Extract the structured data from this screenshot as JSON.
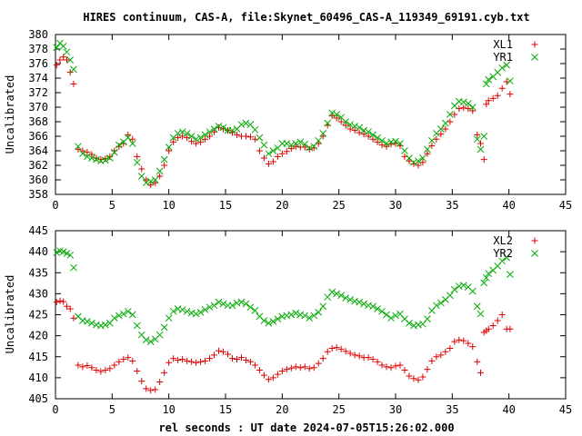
{
  "title": "HIRES continuum, CAS-A, file:Skynet_60496_CAS-A_119349_69191.cyb.txt",
  "xlabel": "rel seconds : UT date 2024-07-05T15:26:02.000",
  "chart_data": [
    {
      "type": "scatter",
      "ylabel": "Uncalibrated",
      "xlim": [
        0,
        45
      ],
      "ylim": [
        358,
        380
      ],
      "xticks": [
        0,
        5,
        10,
        15,
        20,
        25,
        30,
        35,
        40,
        45
      ],
      "yticks": [
        358,
        360,
        362,
        364,
        366,
        368,
        370,
        372,
        374,
        376,
        378,
        380
      ],
      "legend": "top-right",
      "series": [
        {
          "name": "XL1",
          "color": "#dd0000",
          "marker": "plus",
          "x": [
            0.1,
            0.4,
            0.7,
            1.0,
            1.3,
            1.6,
            2.0,
            2.4,
            2.8,
            3.2,
            3.6,
            4.0,
            4.4,
            4.8,
            5.2,
            5.6,
            6.0,
            6.4,
            6.8,
            7.2,
            7.6,
            8.0,
            8.4,
            8.8,
            9.2,
            9.6,
            10.0,
            10.4,
            10.8,
            11.2,
            11.6,
            12.0,
            12.4,
            12.8,
            13.2,
            13.6,
            14.0,
            14.4,
            14.8,
            15.2,
            15.6,
            16.0,
            16.4,
            16.8,
            17.2,
            17.6,
            18.0,
            18.4,
            18.8,
            19.2,
            19.6,
            20.0,
            20.4,
            20.8,
            21.2,
            21.6,
            22.0,
            22.4,
            22.8,
            23.2,
            23.6,
            24.0,
            24.4,
            24.8,
            25.2,
            25.6,
            26.0,
            26.4,
            26.8,
            27.2,
            27.6,
            28.0,
            28.4,
            28.8,
            29.2,
            29.6,
            30.0,
            30.4,
            30.8,
            31.2,
            31.6,
            32.0,
            32.4,
            32.8,
            33.2,
            33.6,
            34.0,
            34.4,
            34.8,
            35.2,
            35.6,
            36.0,
            36.4,
            36.8,
            37.2,
            37.5,
            37.8,
            38.0,
            38.2,
            38.6,
            39.0,
            39.4,
            39.8,
            40.1
          ],
          "y": [
            375.8,
            376.5,
            376.9,
            376.5,
            374.8,
            373.2,
            364.2,
            364.0,
            363.8,
            363.5,
            363.0,
            362.8,
            362.9,
            363.2,
            364.0,
            364.6,
            365.0,
            366.2,
            365.6,
            363.2,
            361.5,
            360.0,
            359.3,
            359.6,
            360.5,
            362.0,
            364.0,
            365.2,
            365.8,
            366.0,
            365.8,
            365.3,
            365.0,
            365.2,
            365.6,
            366.0,
            366.6,
            367.2,
            367.0,
            366.8,
            366.5,
            366.2,
            366.0,
            366.0,
            365.9,
            365.6,
            364.0,
            363.0,
            362.2,
            362.5,
            363.2,
            363.6,
            363.9,
            364.3,
            364.6,
            364.5,
            364.5,
            364.2,
            364.4,
            365.0,
            366.0,
            367.5,
            368.8,
            368.5,
            368.0,
            367.5,
            367.0,
            366.8,
            366.5,
            366.3,
            366.0,
            365.6,
            365.2,
            364.8,
            364.6,
            364.9,
            365.0,
            364.7,
            363.2,
            362.6,
            362.2,
            362.0,
            362.4,
            363.6,
            364.7,
            365.6,
            366.3,
            367.0,
            368.0,
            369.0,
            369.8,
            369.9,
            369.8,
            369.5,
            366.2,
            365.0,
            362.8,
            370.4,
            370.9,
            371.2,
            371.6,
            372.6,
            373.5,
            371.8
          ]
        },
        {
          "name": "YR1",
          "color": "#00aa00",
          "marker": "cross",
          "x": [
            0.1,
            0.4,
            0.7,
            1.0,
            1.3,
            1.6,
            2.0,
            2.4,
            2.8,
            3.2,
            3.6,
            4.0,
            4.4,
            4.8,
            5.2,
            5.6,
            6.0,
            6.4,
            6.8,
            7.2,
            7.6,
            8.0,
            8.4,
            8.8,
            9.2,
            9.6,
            10.0,
            10.4,
            10.8,
            11.2,
            11.6,
            12.0,
            12.4,
            12.8,
            13.2,
            13.6,
            14.0,
            14.4,
            14.8,
            15.2,
            15.6,
            16.0,
            16.4,
            16.8,
            17.2,
            17.6,
            18.0,
            18.4,
            18.8,
            19.2,
            19.6,
            20.0,
            20.4,
            20.8,
            21.2,
            21.6,
            22.0,
            22.4,
            22.8,
            23.2,
            23.6,
            24.0,
            24.4,
            24.8,
            25.2,
            25.6,
            26.0,
            26.4,
            26.8,
            27.2,
            27.6,
            28.0,
            28.4,
            28.8,
            29.2,
            29.6,
            30.0,
            30.4,
            30.8,
            31.2,
            31.6,
            32.0,
            32.4,
            32.8,
            33.2,
            33.6,
            34.0,
            34.4,
            34.8,
            35.2,
            35.6,
            36.0,
            36.4,
            36.8,
            37.2,
            37.5,
            37.8,
            38.0,
            38.2,
            38.6,
            39.0,
            39.4,
            39.8,
            40.1
          ],
          "y": [
            378.2,
            378.8,
            378.4,
            377.6,
            376.5,
            375.2,
            364.6,
            363.6,
            363.2,
            363.0,
            362.8,
            362.6,
            362.7,
            363.0,
            363.8,
            364.8,
            365.2,
            365.8,
            365.0,
            362.4,
            360.5,
            359.6,
            359.8,
            360.0,
            361.2,
            362.8,
            364.5,
            365.8,
            366.4,
            366.6,
            366.4,
            366.0,
            365.6,
            365.8,
            366.2,
            366.6,
            367.0,
            367.4,
            367.2,
            366.8,
            366.8,
            367.0,
            367.6,
            367.8,
            367.6,
            366.9,
            365.8,
            364.8,
            363.6,
            364.0,
            364.4,
            365.0,
            365.0,
            364.8,
            365.0,
            365.2,
            364.9,
            364.4,
            364.6,
            365.4,
            366.4,
            367.8,
            369.2,
            369.0,
            368.6,
            368.0,
            367.6,
            367.4,
            367.2,
            366.8,
            366.6,
            366.2,
            365.8,
            365.4,
            365.0,
            365.2,
            365.3,
            365.0,
            364.0,
            363.0,
            362.4,
            362.6,
            363.0,
            364.2,
            365.4,
            366.4,
            367.0,
            367.8,
            369.0,
            370.2,
            370.8,
            370.7,
            370.5,
            370.0,
            365.6,
            364.2,
            366.0,
            373.2,
            373.8,
            374.2,
            374.8,
            375.4,
            375.8,
            373.6
          ]
        }
      ]
    },
    {
      "type": "scatter",
      "ylabel": "Uncalibrated",
      "xlim": [
        0,
        45
      ],
      "ylim": [
        405,
        445
      ],
      "xticks": [
        0,
        5,
        10,
        15,
        20,
        25,
        30,
        35,
        40,
        45
      ],
      "yticks": [
        405,
        410,
        415,
        420,
        425,
        430,
        435,
        440,
        445
      ],
      "legend": "top-right",
      "series": [
        {
          "name": "XL2",
          "color": "#dd0000",
          "marker": "plus",
          "x": [
            0.1,
            0.4,
            0.7,
            1.0,
            1.3,
            1.6,
            2.0,
            2.4,
            2.8,
            3.2,
            3.6,
            4.0,
            4.4,
            4.8,
            5.2,
            5.6,
            6.0,
            6.4,
            6.8,
            7.2,
            7.6,
            8.0,
            8.4,
            8.8,
            9.2,
            9.6,
            10.0,
            10.4,
            10.8,
            11.2,
            11.6,
            12.0,
            12.4,
            12.8,
            13.2,
            13.6,
            14.0,
            14.4,
            14.8,
            15.2,
            15.6,
            16.0,
            16.4,
            16.8,
            17.2,
            17.6,
            18.0,
            18.4,
            18.8,
            19.2,
            19.6,
            20.0,
            20.4,
            20.8,
            21.2,
            21.6,
            22.0,
            22.4,
            22.8,
            23.2,
            23.6,
            24.0,
            24.4,
            24.8,
            25.2,
            25.6,
            26.0,
            26.4,
            26.8,
            27.2,
            27.6,
            28.0,
            28.4,
            28.8,
            29.2,
            29.6,
            30.0,
            30.4,
            30.8,
            31.2,
            31.6,
            32.0,
            32.4,
            32.8,
            33.2,
            33.6,
            34.0,
            34.4,
            34.8,
            35.2,
            35.6,
            36.0,
            36.4,
            36.8,
            37.2,
            37.5,
            37.8,
            38.0,
            38.2,
            38.6,
            39.0,
            39.4,
            39.8,
            40.1
          ],
          "y": [
            428.0,
            428.3,
            428.1,
            427.0,
            426.4,
            424.2,
            413.0,
            412.6,
            412.9,
            412.4,
            411.8,
            411.5,
            411.8,
            412.2,
            413.0,
            413.8,
            414.4,
            414.8,
            414.0,
            411.6,
            409.2,
            407.4,
            407.0,
            407.2,
            409.0,
            411.2,
            413.6,
            414.6,
            414.2,
            414.4,
            414.0,
            413.8,
            413.6,
            413.8,
            414.0,
            414.6,
            415.4,
            416.4,
            416.2,
            415.6,
            414.6,
            414.4,
            414.8,
            414.2,
            413.8,
            413.0,
            411.8,
            410.6,
            409.6,
            410.0,
            410.8,
            411.6,
            412.0,
            412.3,
            412.6,
            412.4,
            412.6,
            412.2,
            412.4,
            413.4,
            414.6,
            416.2,
            417.0,
            417.2,
            416.8,
            416.3,
            415.8,
            415.4,
            415.2,
            414.8,
            414.8,
            414.4,
            413.8,
            413.0,
            412.6,
            412.4,
            412.8,
            413.0,
            411.8,
            410.4,
            409.8,
            409.5,
            410.2,
            412.0,
            414.0,
            415.0,
            415.4,
            416.2,
            417.0,
            418.6,
            419.0,
            418.8,
            418.2,
            417.4,
            413.8,
            411.2,
            420.8,
            421.2,
            421.6,
            422.4,
            423.6,
            425.0,
            421.6,
            421.6
          ]
        },
        {
          "name": "YR2",
          "color": "#00aa00",
          "marker": "cross",
          "x": [
            0.1,
            0.4,
            0.7,
            1.0,
            1.3,
            1.6,
            2.0,
            2.4,
            2.8,
            3.2,
            3.6,
            4.0,
            4.4,
            4.8,
            5.2,
            5.6,
            6.0,
            6.4,
            6.8,
            7.2,
            7.6,
            8.0,
            8.4,
            8.8,
            9.2,
            9.6,
            10.0,
            10.4,
            10.8,
            11.2,
            11.6,
            12.0,
            12.4,
            12.8,
            13.2,
            13.6,
            14.0,
            14.4,
            14.8,
            15.2,
            15.6,
            16.0,
            16.4,
            16.8,
            17.2,
            17.6,
            18.0,
            18.4,
            18.8,
            19.2,
            19.6,
            20.0,
            20.4,
            20.8,
            21.2,
            21.6,
            22.0,
            22.4,
            22.8,
            23.2,
            23.6,
            24.0,
            24.4,
            24.8,
            25.2,
            25.6,
            26.0,
            26.4,
            26.8,
            27.2,
            27.6,
            28.0,
            28.4,
            28.8,
            29.2,
            29.6,
            30.0,
            30.4,
            30.8,
            31.2,
            31.6,
            32.0,
            32.4,
            32.8,
            33.2,
            33.6,
            34.0,
            34.4,
            34.8,
            35.2,
            35.6,
            36.0,
            36.4,
            36.8,
            37.2,
            37.5,
            37.8,
            38.0,
            38.2,
            38.6,
            39.0,
            39.4,
            39.8,
            40.1
          ],
          "y": [
            439.8,
            440.2,
            440.0,
            439.6,
            439.2,
            436.2,
            424.6,
            423.6,
            423.4,
            423.0,
            422.6,
            422.4,
            422.6,
            423.0,
            424.2,
            424.8,
            425.2,
            425.8,
            425.0,
            422.4,
            420.2,
            419.0,
            418.6,
            419.2,
            420.2,
            422.0,
            424.2,
            425.8,
            426.4,
            426.2,
            425.8,
            425.4,
            425.2,
            425.6,
            426.2,
            426.8,
            427.2,
            428.0,
            427.6,
            427.2,
            427.2,
            427.8,
            428.0,
            427.6,
            426.8,
            426.0,
            424.6,
            423.6,
            423.0,
            423.4,
            424.0,
            424.6,
            424.8,
            425.0,
            425.4,
            425.0,
            424.8,
            424.2,
            424.8,
            425.6,
            427.0,
            429.2,
            430.4,
            430.0,
            429.6,
            429.0,
            428.6,
            428.2,
            428.0,
            427.6,
            427.2,
            427.0,
            426.4,
            425.8,
            425.0,
            424.2,
            424.8,
            425.2,
            424.0,
            423.0,
            422.4,
            422.6,
            422.8,
            424.0,
            426.0,
            427.2,
            427.8,
            428.6,
            429.6,
            431.0,
            431.8,
            432.0,
            431.6,
            430.6,
            427.0,
            425.2,
            432.6,
            433.8,
            434.8,
            435.6,
            436.6,
            437.8,
            438.6,
            434.6
          ]
        }
      ]
    }
  ]
}
